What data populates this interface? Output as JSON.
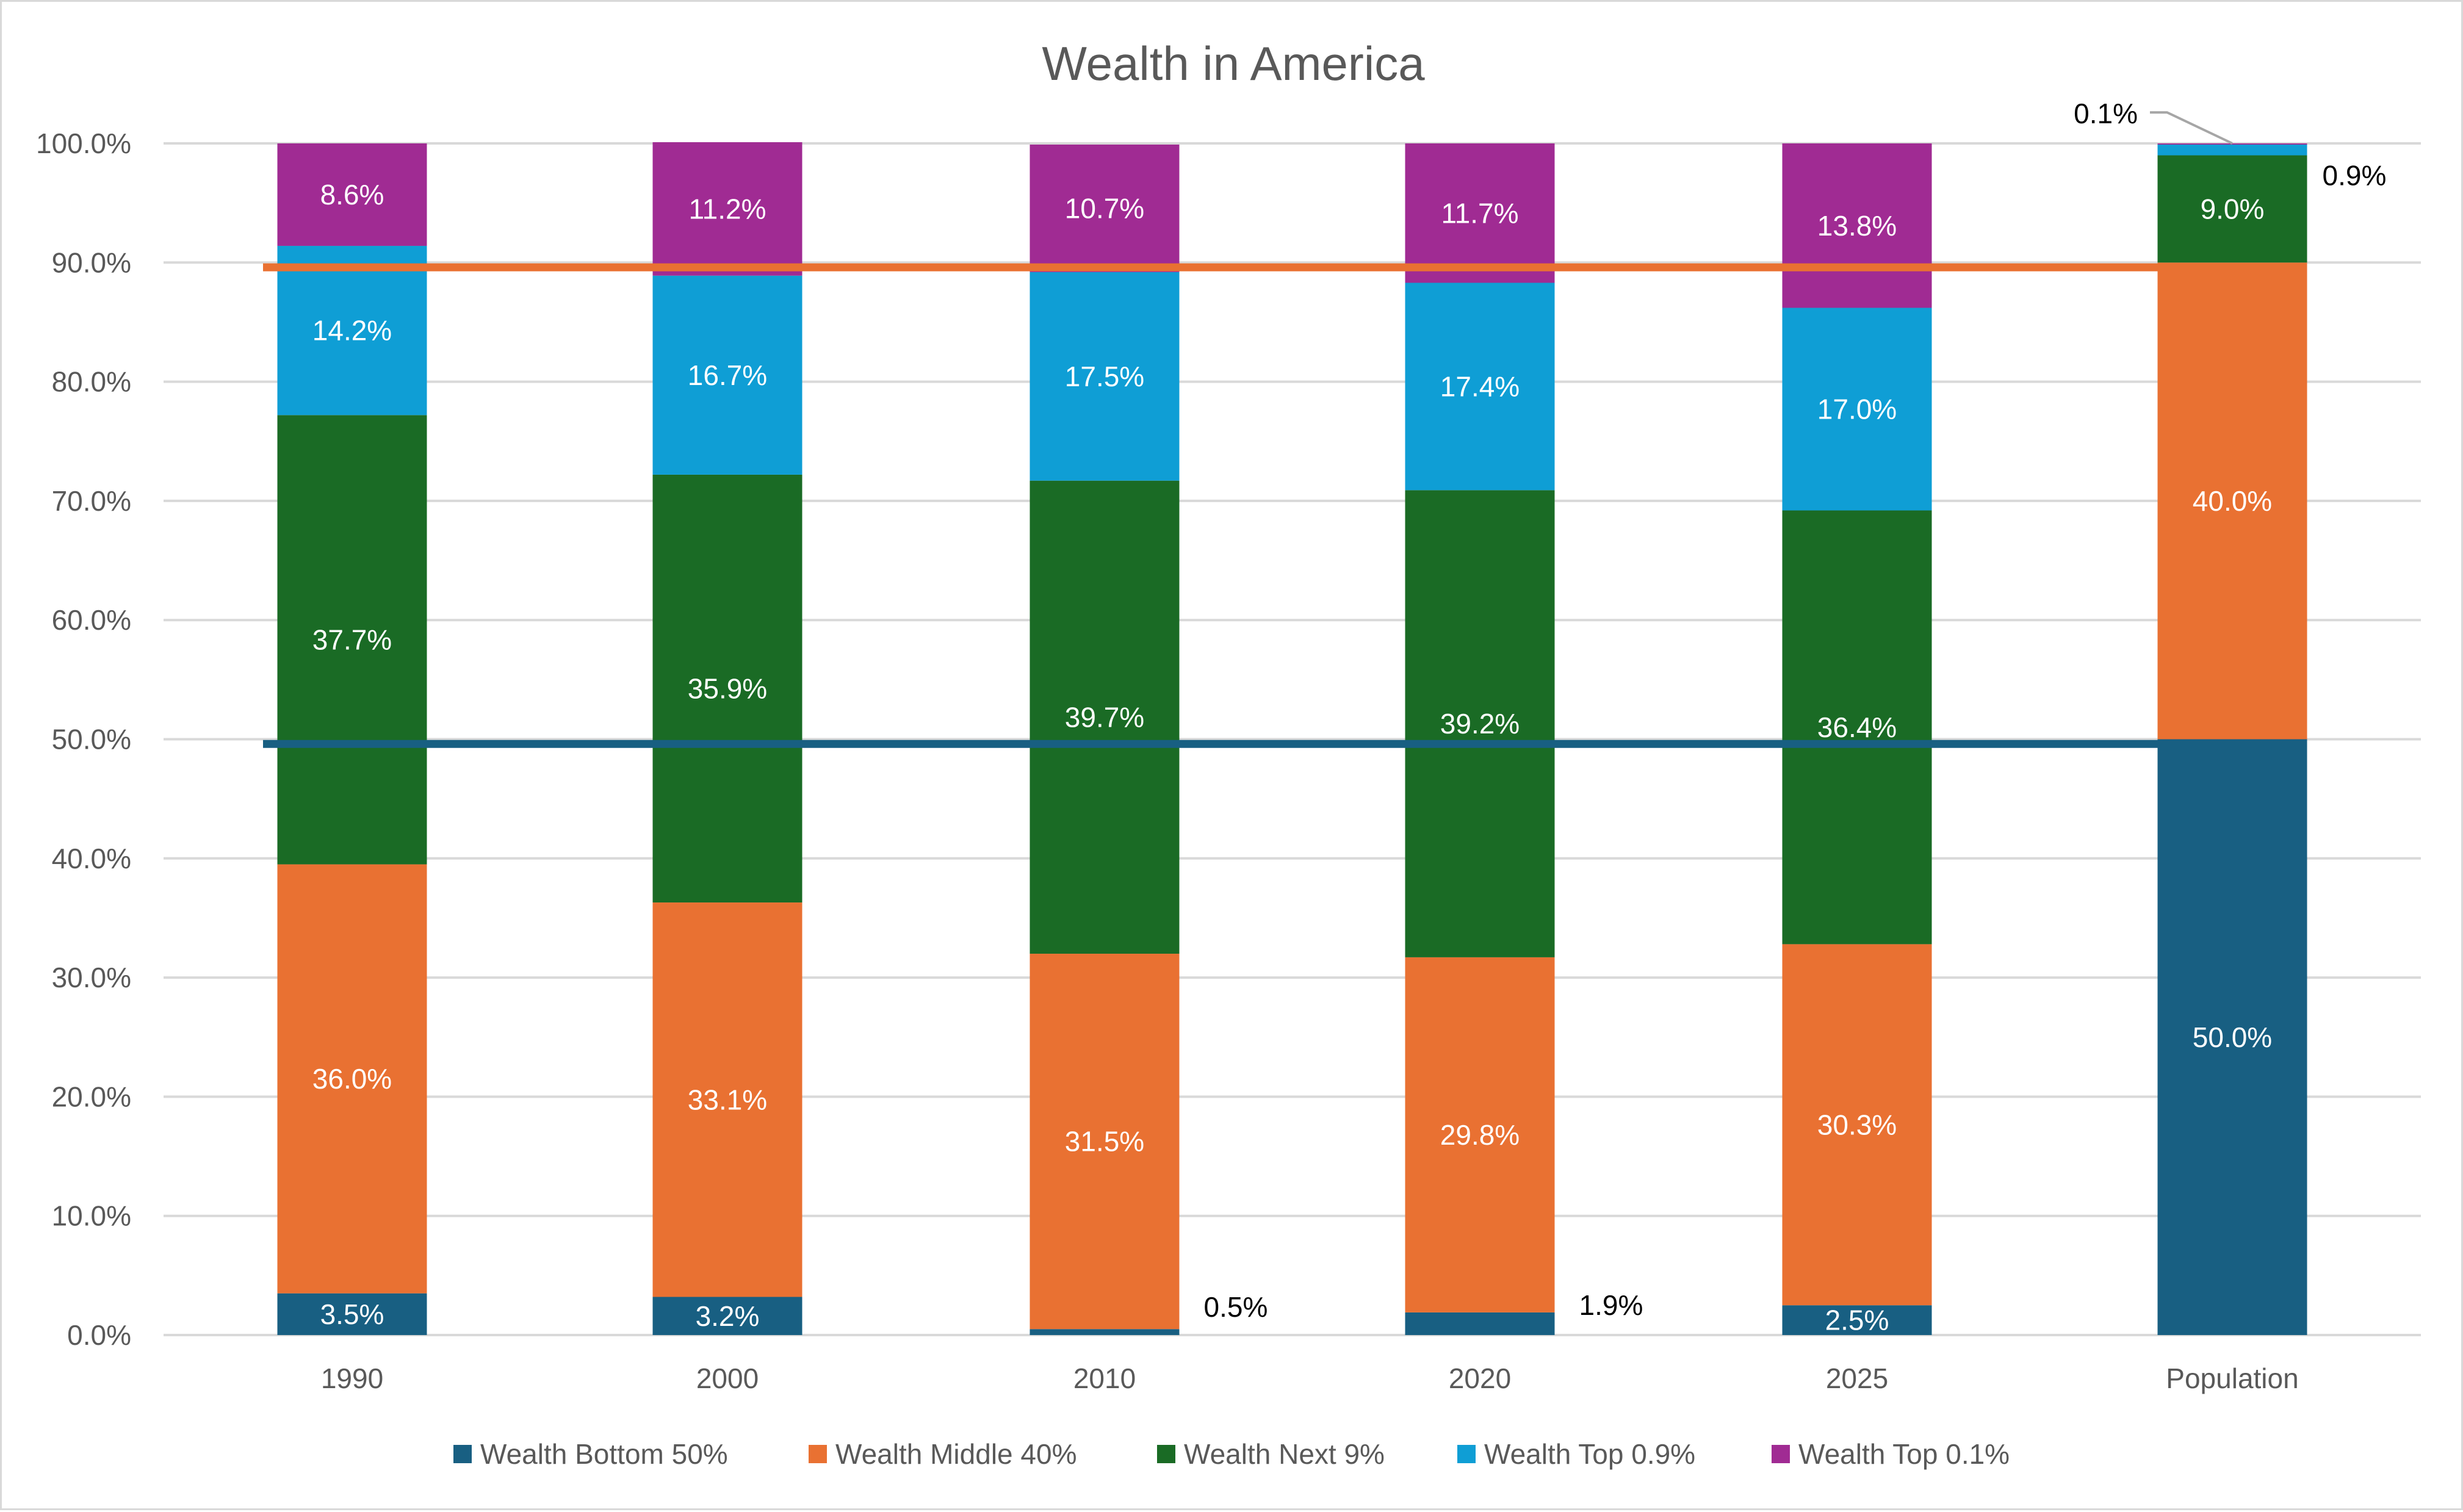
{
  "chart_data": {
    "type": "bar",
    "stacked": true,
    "title": "Wealth in America",
    "categories": [
      "1990",
      "2000",
      "2010",
      "2020",
      "2025",
      "Population"
    ],
    "series": [
      {
        "name": "Wealth Bottom 50%",
        "color": "#185f82",
        "values": [
          3.5,
          3.2,
          0.5,
          1.9,
          2.5,
          50.0
        ]
      },
      {
        "name": "Wealth Middle 40%",
        "color": "#e97132",
        "values": [
          36.0,
          33.1,
          31.5,
          29.8,
          30.3,
          40.0
        ]
      },
      {
        "name": "Wealth Next 9%",
        "color": "#1a6b25",
        "values": [
          37.7,
          35.9,
          39.7,
          39.2,
          36.4,
          9.0
        ]
      },
      {
        "name": "Wealth Top 0.9%",
        "color": "#0f9ed5",
        "values": [
          14.2,
          16.7,
          17.5,
          17.4,
          17.0,
          0.9
        ]
      },
      {
        "name": "Wealth Top 0.1%",
        "color": "#a02b93",
        "values": [
          8.6,
          11.2,
          10.7,
          11.7,
          13.8,
          0.1
        ]
      }
    ],
    "reference_lines": [
      {
        "value": 89.6,
        "color": "#e97132"
      },
      {
        "value": 49.6,
        "color": "#185f82"
      }
    ],
    "ylim": [
      0,
      100
    ],
    "yticks": [
      "0.0%",
      "10.0%",
      "20.0%",
      "30.0%",
      "40.0%",
      "50.0%",
      "60.0%",
      "70.0%",
      "80.0%",
      "90.0%",
      "100.0%"
    ],
    "grid": true,
    "legend": "bottom",
    "xlabel": "",
    "ylabel": ""
  }
}
